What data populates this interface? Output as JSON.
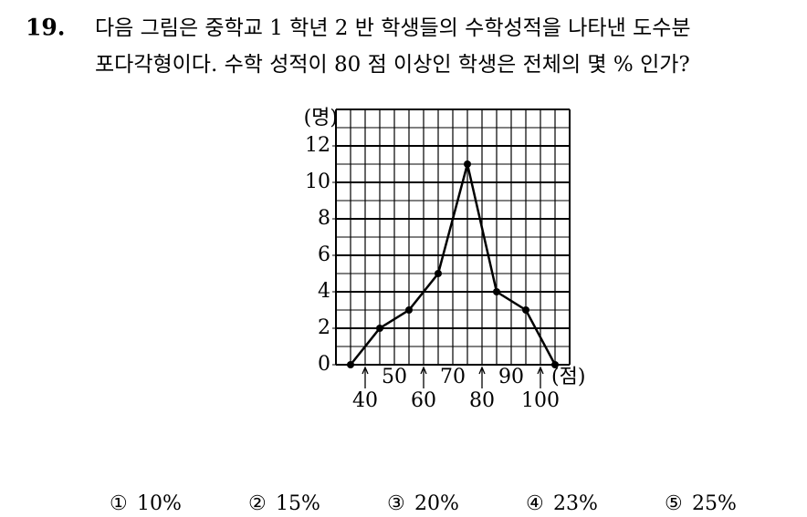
{
  "question": {
    "number": "19.",
    "lines": [
      "다음 그림은 중학교 1 학년 2 반 학생들의 수학성적을 나타낸 도수분",
      "포다각형이다. 수학 성적이 80 점 이상인 학생은 전체의 몇 % 인가?"
    ]
  },
  "chart_data": {
    "type": "line",
    "x_label": "(점)",
    "y_label": "(명)",
    "x": [
      35,
      45,
      55,
      65,
      75,
      85,
      95,
      105
    ],
    "values": [
      0,
      2,
      3,
      5,
      11,
      4,
      3,
      0
    ],
    "color": "#000000",
    "xlim": [
      30,
      110
    ],
    "ylim": [
      0,
      14
    ],
    "xticks": [
      40,
      50,
      60,
      70,
      80,
      90,
      100
    ],
    "yticks": [
      0,
      2,
      4,
      6,
      8,
      10,
      12
    ],
    "xgrid": [
      30,
      35,
      40,
      45,
      50,
      55,
      60,
      65,
      70,
      75,
      80,
      85,
      90,
      95,
      100,
      105,
      110
    ],
    "ygrid": [
      0,
      1,
      2,
      3,
      4,
      5,
      6,
      7,
      8,
      9,
      10,
      11,
      12,
      13,
      14
    ],
    "grid": true
  },
  "choices": [
    {
      "mark": "①",
      "text": "10%"
    },
    {
      "mark": "②",
      "text": "15%"
    },
    {
      "mark": "③",
      "text": "20%"
    },
    {
      "mark": "④",
      "text": "23%"
    },
    {
      "mark": "⑤",
      "text": "25%"
    }
  ]
}
